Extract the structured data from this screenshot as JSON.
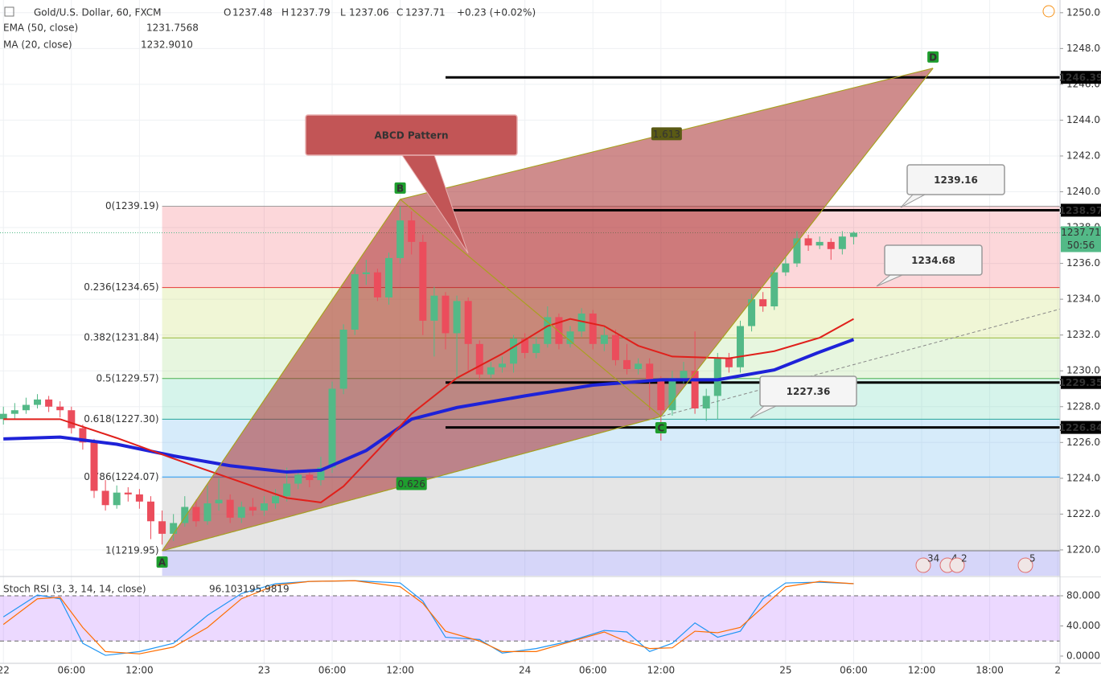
{
  "chart_data": [
    {
      "type": "candlestick",
      "title": "Gold/U.S. Dollar, 60, FXCM",
      "quote": [
        {
          "label": "O",
          "value": 1237.48
        },
        {
          "label": "H",
          "value": 1237.79
        },
        {
          "label": "L",
          "value": 1237.06
        },
        {
          "label": "C",
          "value": 1237.71
        }
      ],
      "change": "+0.23 (+0.02%)",
      "xlim": [
        -0.3,
        93.2
      ],
      "xticks": [
        {
          "value": 0,
          "label": "22"
        },
        {
          "value": 6,
          "label": "06:00"
        },
        {
          "value": 12,
          "label": "12:00"
        },
        {
          "value": 23,
          "label": "23"
        },
        {
          "value": 29,
          "label": "06:00"
        },
        {
          "value": 35,
          "label": "12:00"
        },
        {
          "value": 46,
          "label": "24"
        },
        {
          "value": 52,
          "label": "06:00"
        },
        {
          "value": 58,
          "label": "12:00"
        },
        {
          "value": 69,
          "label": "25"
        },
        {
          "value": 75,
          "label": "06:00"
        },
        {
          "value": 81,
          "label": "12:00"
        },
        {
          "value": 87,
          "label": "18:00"
        },
        {
          "value": 93,
          "label": "2"
        }
      ],
      "ylim": [
        1218.56,
        1250.71
      ],
      "yticks": [
        {
          "value": 1220,
          "label": "1220.00"
        },
        {
          "value": 1222,
          "label": "1222.00"
        },
        {
          "value": 1224,
          "label": "1224.00"
        },
        {
          "value": 1226,
          "label": "1226.00"
        },
        {
          "value": 1228,
          "label": "1228.00"
        },
        {
          "value": 1230,
          "label": "1230.00"
        },
        {
          "value": 1232,
          "label": "1232.00"
        },
        {
          "value": 1234,
          "label": "1234.00"
        },
        {
          "value": 1236,
          "label": "1236.00"
        },
        {
          "value": 1238,
          "label": "1238.00"
        },
        {
          "value": 1240,
          "label": "1240.00"
        },
        {
          "value": 1242,
          "label": "1242.00"
        },
        {
          "value": 1244,
          "label": "1244.00"
        },
        {
          "value": 1246,
          "label": "1246.00"
        },
        {
          "value": 1248,
          "label": "1248.00"
        },
        {
          "value": 1250,
          "label": "1250.00"
        }
      ],
      "grid": true,
      "up_color": "#53b987",
      "down_color": "#eb4d5c",
      "x": [
        0,
        1,
        2,
        3,
        4,
        5,
        6,
        7,
        8,
        9,
        10,
        11,
        12,
        13,
        14,
        15,
        16,
        17,
        18,
        19,
        20,
        21,
        22,
        23,
        24,
        25,
        26,
        27,
        28,
        29,
        30,
        31,
        32,
        33,
        34,
        35,
        36,
        37,
        38,
        39,
        40,
        41,
        42,
        43,
        44,
        45,
        46,
        47,
        48,
        49,
        50,
        51,
        52,
        53,
        54,
        55,
        56,
        57,
        58,
        59,
        60,
        61,
        62,
        63,
        64,
        65,
        66,
        67,
        68,
        69,
        70,
        71,
        72,
        73,
        74,
        75
      ],
      "open": [
        1227.3,
        1227.6,
        1227.8,
        1228.1,
        1228.4,
        1228.0,
        1227.8,
        1226.8,
        1226.0,
        1223.3,
        1222.5,
        1223.2,
        1223.1,
        1222.7,
        1221.6,
        1220.9,
        1221.5,
        1222.4,
        1221.6,
        1222.6,
        1222.8,
        1221.8,
        1222.4,
        1222.2,
        1222.6,
        1223.0,
        1223.7,
        1224.2,
        1223.9,
        1224.6,
        1229.0,
        1232.3,
        1235.4,
        1235.5,
        1234.1,
        1236.3,
        1238.4,
        1237.2,
        1232.8,
        1234.2,
        1232.1,
        1233.9,
        1231.5,
        1229.8,
        1230.2,
        1230.4,
        1231.8,
        1231.0,
        1231.5,
        1233.0,
        1231.5,
        1232.2,
        1233.2,
        1231.5,
        1232.0,
        1230.6,
        1230.1,
        1230.4,
        1229.5,
        1227.8,
        1229.6,
        1230.0,
        1227.9,
        1228.6,
        1230.7,
        1230.2,
        1232.5,
        1234.0,
        1233.6,
        1235.5,
        1236.0,
        1237.4,
        1237.0,
        1237.2,
        1236.8,
        1237.48
      ],
      "high": [
        1228.0,
        1228.2,
        1228.5,
        1228.7,
        1228.6,
        1228.3,
        1228.0,
        1227.0,
        1226.2,
        1223.9,
        1223.6,
        1223.5,
        1223.4,
        1223.0,
        1222.2,
        1222.0,
        1223.0,
        1222.8,
        1223.6,
        1224.0,
        1223.1,
        1222.7,
        1222.9,
        1223.0,
        1223.4,
        1224.6,
        1224.5,
        1224.5,
        1225.2,
        1229.4,
        1232.6,
        1235.8,
        1236.2,
        1235.7,
        1236.6,
        1239.19,
        1238.9,
        1237.6,
        1234.7,
        1234.4,
        1234.2,
        1234.1,
        1231.7,
        1230.5,
        1230.8,
        1232.0,
        1232.1,
        1231.9,
        1233.6,
        1233.2,
        1232.5,
        1233.5,
        1233.4,
        1232.5,
        1232.3,
        1231.5,
        1230.7,
        1230.7,
        1229.7,
        1230.0,
        1230.5,
        1232.2,
        1229.0,
        1231.0,
        1231.0,
        1232.8,
        1234.3,
        1234.4,
        1235.8,
        1236.4,
        1237.8,
        1237.6,
        1237.5,
        1237.4,
        1237.8,
        1237.79
      ],
      "low": [
        1227.0,
        1227.3,
        1227.6,
        1227.9,
        1227.7,
        1227.4,
        1226.5,
        1225.6,
        1222.9,
        1222.2,
        1222.3,
        1222.7,
        1222.3,
        1220.6,
        1220.3,
        1220.5,
        1221.3,
        1221.3,
        1221.4,
        1222.2,
        1221.5,
        1221.5,
        1221.9,
        1221.9,
        1222.3,
        1222.7,
        1223.4,
        1223.5,
        1223.6,
        1224.3,
        1228.7,
        1232.0,
        1234.8,
        1233.9,
        1233.7,
        1236.0,
        1236.5,
        1232.0,
        1230.8,
        1231.2,
        1229.5,
        1230.0,
        1229.5,
        1229.6,
        1229.9,
        1229.9,
        1230.7,
        1230.7,
        1231.3,
        1231.2,
        1231.3,
        1231.9,
        1231.2,
        1231.1,
        1230.3,
        1229.8,
        1229.8,
        1227.8,
        1226.1,
        1227.5,
        1229.3,
        1227.6,
        1227.2,
        1227.3,
        1229.9,
        1229.9,
        1232.2,
        1233.3,
        1233.4,
        1235.3,
        1235.8,
        1236.7,
        1236.8,
        1236.2,
        1236.5,
        1237.06
      ],
      "close": [
        1227.6,
        1227.8,
        1228.1,
        1228.4,
        1228.0,
        1227.8,
        1226.8,
        1226.0,
        1223.3,
        1222.5,
        1223.2,
        1223.1,
        1222.7,
        1221.6,
        1220.9,
        1221.5,
        1222.4,
        1221.6,
        1222.6,
        1222.8,
        1221.8,
        1222.4,
        1222.2,
        1222.6,
        1223.0,
        1223.7,
        1224.2,
        1223.9,
        1224.6,
        1229.0,
        1232.3,
        1235.4,
        1235.5,
        1234.1,
        1236.3,
        1238.4,
        1237.2,
        1232.8,
        1234.2,
        1232.1,
        1233.9,
        1231.5,
        1229.8,
        1230.2,
        1230.4,
        1231.8,
        1231.0,
        1231.5,
        1233.0,
        1231.5,
        1232.2,
        1233.2,
        1231.5,
        1232.0,
        1230.6,
        1230.1,
        1230.4,
        1229.5,
        1227.8,
        1229.6,
        1230.0,
        1227.9,
        1228.6,
        1230.7,
        1230.2,
        1232.5,
        1234.0,
        1233.6,
        1235.5,
        1236.0,
        1237.4,
        1237.0,
        1237.2,
        1236.8,
        1237.5,
        1237.71
      ],
      "series": [
        {
          "name": "EMA (50, close)",
          "last": 1231.7568,
          "color": "#1e22d8",
          "x": [
            0,
            5,
            10,
            15,
            20,
            25,
            28,
            32,
            36,
            40,
            46,
            52,
            58,
            63,
            68,
            72,
            75
          ],
          "values": [
            1226.2,
            1226.3,
            1225.9,
            1225.25,
            1224.7,
            1224.35,
            1224.45,
            1225.55,
            1227.3,
            1227.95,
            1228.6,
            1229.2,
            1229.5,
            1229.5,
            1230.05,
            1231.05,
            1231.75
          ]
        },
        {
          "name": "MA (20, close)",
          "last": {
            "value": 1232.901,
            "label": "1232.9010"
          },
          "color": "#e0201b",
          "x": [
            0,
            5,
            10,
            15,
            20,
            25,
            28,
            30,
            33,
            36,
            40,
            44,
            48,
            50,
            53,
            56,
            59,
            64,
            68,
            72,
            75
          ],
          "values": [
            1227.3,
            1227.3,
            1226.25,
            1225.1,
            1224,
            1222.9,
            1222.65,
            1223.55,
            1225.55,
            1227.6,
            1229.6,
            1230.95,
            1232.5,
            1232.9,
            1232.5,
            1231.4,
            1230.8,
            1230.7,
            1231.1,
            1231.85,
            1232.9
          ]
        }
      ],
      "fib": {
        "x_start": 14,
        "levels": [
          {
            "value": 1239.19,
            "label": "0(1239.19)",
            "color": "#9e9e9e",
            "fill": "rgba(242,54,69,0.2)"
          },
          {
            "value": 1234.65,
            "label": "0.236(1234.65)",
            "color": "#e53935",
            "fill": "rgba(205,225,120,0.3)"
          },
          {
            "value": 1231.84,
            "label": "0.382(1231.84)",
            "color": "#9ab83a",
            "fill": "rgba(175,225,150,0.3)"
          },
          {
            "value": 1229.57,
            "label": "0.5(1229.57)",
            "color": "#4caf50",
            "fill": "rgba(120,220,190,0.3)"
          },
          {
            "value": 1227.3,
            "label": "0.618(1227.30)",
            "color": "#26a69a",
            "fill": "rgba(120,190,240,0.3)"
          },
          {
            "value": 1224.07,
            "label": "0.786(1224.07)",
            "color": "#2196f3",
            "fill": "rgba(190,190,190,0.4)"
          },
          {
            "value": 1219.95,
            "label": "1(1219.95)",
            "color": "#787878",
            "fill": "rgba(120,120,235,0.3)"
          }
        ]
      },
      "hlines": [
        {
          "value": 1246.39,
          "label": "1246.39",
          "x_start": 39
        },
        {
          "value": 1238.97,
          "label": "1238.97",
          "x_start": 39
        },
        {
          "value": 1229.35,
          "label": "1229.35",
          "x_start": 39
        },
        {
          "value": 1226.84,
          "label": "1226.84",
          "x_start": 39
        }
      ],
      "last_price": {
        "value": 1237.71,
        "label": "1237.71",
        "countdown": "50:56",
        "color": "#53b987"
      },
      "pattern": {
        "points": [
          {
            "label": "A",
            "x": 14,
            "y": 1219.95
          },
          {
            "label": "B",
            "x": 35,
            "y": 1239.58
          },
          {
            "label": "C",
            "x": 58,
            "y": 1227.45
          },
          {
            "label": "D",
            "x": 82,
            "y": 1246.9
          }
        ],
        "ratios": [
          0.626,
          1.613
        ],
        "fill": "rgba(168,45,45,0.55)",
        "edge": "#a8a020",
        "label_color": "#1e9e2e"
      },
      "annotations": [
        "ABCD Pattern",
        "1239.16",
        "1234.68",
        "1227.36"
      ],
      "events": [
        34,
        4,
        2,
        5
      ]
    },
    {
      "type": "line",
      "title": "Stoch RSI (3, 3, 14, 14, close)",
      "ylim": [
        -9.6,
        104.5
      ],
      "yticks": [
        {
          "value": 0,
          "label": "0.0000"
        },
        {
          "value": 40,
          "label": "40.0000"
        },
        {
          "value": 80,
          "label": "80.0000"
        }
      ],
      "band": [
        20,
        80
      ],
      "band_color": "rgba(170,80,255,0.22)",
      "x": [
        0,
        3,
        5,
        7,
        9,
        12,
        15,
        18,
        21,
        24,
        27,
        31,
        35,
        37,
        39,
        42,
        44,
        47,
        50,
        53,
        55,
        57,
        59,
        61,
        63,
        65,
        67,
        69,
        72,
        75
      ],
      "series": [
        {
          "color": "#2196f3",
          "values": [
            52,
            81,
            76,
            17,
            1,
            6,
            17,
            54,
            83,
            96,
            99,
            100,
            97,
            73,
            25,
            22,
            4,
            10,
            20,
            34,
            32,
            6,
            17,
            44,
            25,
            33,
            76,
            97,
            98,
            96.1031
          ]
        },
        {
          "color": "#ff6d00",
          "values": [
            42,
            76,
            78,
            38,
            6,
            3,
            12,
            38,
            76,
            94,
            99,
            100,
            92,
            70,
            33,
            20,
            6,
            6,
            19,
            32,
            19,
            10,
            11,
            33,
            31,
            38,
            65,
            92,
            99,
            95.9819
          ]
        }
      ]
    }
  ]
}
